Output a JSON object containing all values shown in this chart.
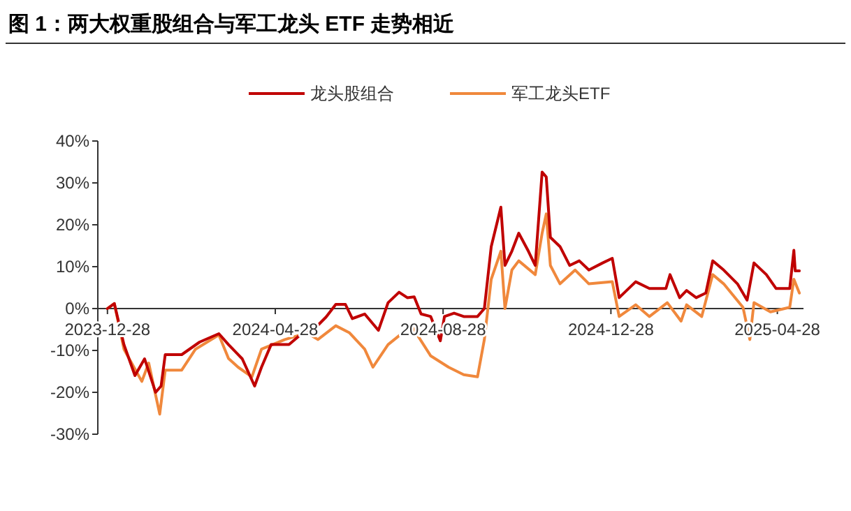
{
  "chart_data": {
    "type": "line",
    "title": "图 1：两大权重股组合与军工龙头 ETF 走势相近",
    "legend": "top",
    "grid": false,
    "xlim": [
      "2023-12-21",
      "2025-05-17"
    ],
    "xticks": [
      {
        "value": "2023-12-28",
        "label": "2023-12-28"
      },
      {
        "value": "2024-04-28",
        "label": "2024-04-28"
      },
      {
        "value": "2024-08-28",
        "label": "2024-08-28"
      },
      {
        "value": "2024-12-28",
        "label": "2024-12-28"
      },
      {
        "value": "2025-04-28",
        "label": "2025-04-28"
      }
    ],
    "ylim": [
      -30,
      40
    ],
    "yticks": [
      {
        "value": -30,
        "label": "-30%"
      },
      {
        "value": -20,
        "label": "-20%"
      },
      {
        "value": -10,
        "label": "-10%"
      },
      {
        "value": 0,
        "label": "0%"
      },
      {
        "value": 10,
        "label": "10%"
      },
      {
        "value": 20,
        "label": "20%"
      },
      {
        "value": 30,
        "label": "30%"
      },
      {
        "value": 40,
        "label": "40%"
      }
    ],
    "series": [
      {
        "name": "龙头股组合",
        "color": "#c00000",
        "x": [
          "2023-12-28",
          "2024-01-02",
          "2024-01-09",
          "2024-01-17",
          "2024-01-24",
          "2024-02-01",
          "2024-02-05",
          "2024-02-08",
          "2024-02-20",
          "2024-03-04",
          "2024-03-18",
          "2024-03-25",
          "2024-04-04",
          "2024-04-13",
          "2024-04-18",
          "2024-04-25",
          "2024-05-08",
          "2024-05-18",
          "2024-05-29",
          "2024-06-04",
          "2024-06-11",
          "2024-06-18",
          "2024-06-23",
          "2024-07-02",
          "2024-07-12",
          "2024-07-19",
          "2024-07-27",
          "2024-08-02",
          "2024-08-07",
          "2024-08-12",
          "2024-08-19",
          "2024-08-26",
          "2024-08-29",
          "2024-09-05",
          "2024-09-12",
          "2024-09-22",
          "2024-09-27",
          "2024-10-02",
          "2024-10-09",
          "2024-10-12",
          "2024-10-17",
          "2024-10-22",
          "2024-10-29",
          "2024-11-03",
          "2024-11-08",
          "2024-11-11",
          "2024-11-14",
          "2024-11-21",
          "2024-11-28",
          "2024-12-05",
          "2024-12-12",
          "2024-12-22",
          "2024-12-29",
          "2025-01-03",
          "2025-01-15",
          "2025-01-25",
          "2025-02-06",
          "2025-02-09",
          "2025-02-16",
          "2025-02-21",
          "2025-02-28",
          "2025-03-07",
          "2025-03-12",
          "2025-03-20",
          "2025-03-30",
          "2025-04-06",
          "2025-04-11",
          "2025-04-20",
          "2025-04-27",
          "2025-05-07",
          "2025-05-10",
          "2025-05-11",
          "2025-05-14"
        ],
        "values": [
          0,
          1.2,
          -8.6,
          -16,
          -12,
          -20,
          -18.5,
          -11,
          -11,
          -8,
          -6,
          -8.6,
          -12,
          -18.5,
          -14,
          -8.6,
          -8.6,
          -5.8,
          -4,
          -2,
          1,
          1,
          -2.4,
          -1.3,
          -5.2,
          1.4,
          3.9,
          2.6,
          2.8,
          -1.3,
          -1.9,
          -7.7,
          -1.9,
          -1.1,
          -1.9,
          -1.9,
          0,
          14.8,
          24.2,
          10.3,
          13.7,
          18,
          13.7,
          10.3,
          32.6,
          31.4,
          17,
          14.8,
          10.3,
          11.4,
          9.2,
          10.9,
          12,
          2.6,
          6.4,
          4.8,
          4.8,
          8.1,
          2.6,
          4.3,
          2.6,
          3.7,
          11.4,
          9.2,
          5.9,
          2,
          10.9,
          8.1,
          4.8,
          4.8,
          13.9,
          9,
          9
        ]
      },
      {
        "name": "军工龙头ETF",
        "color": "#f0883c",
        "x": [
          "2023-12-28",
          "2024-01-02",
          "2024-01-09",
          "2024-01-22",
          "2024-01-27",
          "2024-02-04",
          "2024-02-08",
          "2024-02-20",
          "2024-03-01",
          "2024-03-18",
          "2024-03-25",
          "2024-04-01",
          "2024-04-11",
          "2024-04-18",
          "2024-05-05",
          "2024-05-21",
          "2024-05-29",
          "2024-06-11",
          "2024-06-21",
          "2024-07-02",
          "2024-07-08",
          "2024-07-19",
          "2024-08-05",
          "2024-08-19",
          "2024-09-01",
          "2024-09-12",
          "2024-09-22",
          "2024-09-27",
          "2024-10-02",
          "2024-10-09",
          "2024-10-12",
          "2024-10-17",
          "2024-10-22",
          "2024-11-03",
          "2024-11-08",
          "2024-11-11",
          "2024-11-14",
          "2024-11-21",
          "2024-12-02",
          "2024-12-12",
          "2024-12-29",
          "2025-01-03",
          "2025-01-15",
          "2025-01-25",
          "2025-02-07",
          "2025-02-17",
          "2025-02-21",
          "2025-03-04",
          "2025-03-12",
          "2025-03-20",
          "2025-04-03",
          "2025-04-08",
          "2025-04-11",
          "2025-04-23",
          "2025-05-07",
          "2025-05-10",
          "2025-05-14"
        ],
        "values": [
          0,
          1.2,
          -9.7,
          -17.4,
          -13,
          -25.2,
          -14.7,
          -14.7,
          -9.7,
          -6.3,
          -11.9,
          -14,
          -16.3,
          -9.7,
          -7.4,
          -5.8,
          -7.4,
          -4.1,
          -5.8,
          -9.7,
          -14,
          -8.6,
          -4.1,
          -11.3,
          -14,
          -15.8,
          -16.3,
          -7.4,
          7,
          13.7,
          0,
          9.2,
          11.4,
          8.1,
          18,
          22.6,
          10.3,
          5.9,
          9.2,
          5.9,
          6.4,
          -1.9,
          0.9,
          -1.9,
          1.4,
          -3,
          0.9,
          -1.9,
          8.1,
          5.9,
          0.3,
          -7.4,
          1.4,
          -0.8,
          0.3,
          7,
          3.7
        ]
      }
    ]
  }
}
